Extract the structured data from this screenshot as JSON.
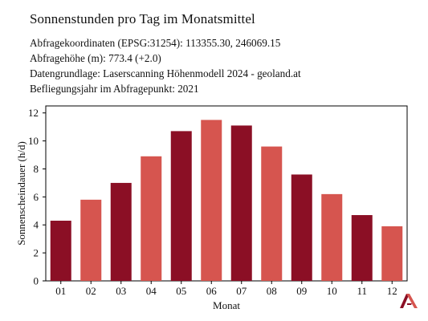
{
  "header": {
    "title": "Sonnenstunden pro Tag im Monatsmittel",
    "lines": [
      "Abfragekoordinaten (EPSG:31254): 113355.30, 246069.15",
      "Abfragehöhe (m): 773.4 (+2.0)",
      "Datengrundlage: Laserscanning Höhenmodell 2024 - geoland.at",
      "Befliegungsjahr im Abfragepunkt: 2021"
    ]
  },
  "logo": {
    "icon": "geoland-logo-icon",
    "colors": [
      "#8b0f25",
      "#d6554f"
    ]
  },
  "chart_data": {
    "type": "bar",
    "title": "",
    "xlabel": "Monat",
    "ylabel": "Sonnenscheindauer (h/d)",
    "categories": [
      "01",
      "02",
      "03",
      "04",
      "05",
      "06",
      "07",
      "08",
      "09",
      "10",
      "11",
      "12"
    ],
    "values": [
      4.3,
      5.8,
      7.0,
      8.9,
      10.7,
      11.5,
      11.1,
      9.6,
      7.6,
      6.2,
      4.7,
      3.9
    ],
    "ylim": [
      0,
      12.5
    ],
    "yticks": [
      0,
      2,
      4,
      6,
      8,
      10,
      12
    ],
    "grid": false,
    "legend": "none",
    "colors": [
      "#8b0f25",
      "#d6554f"
    ]
  }
}
